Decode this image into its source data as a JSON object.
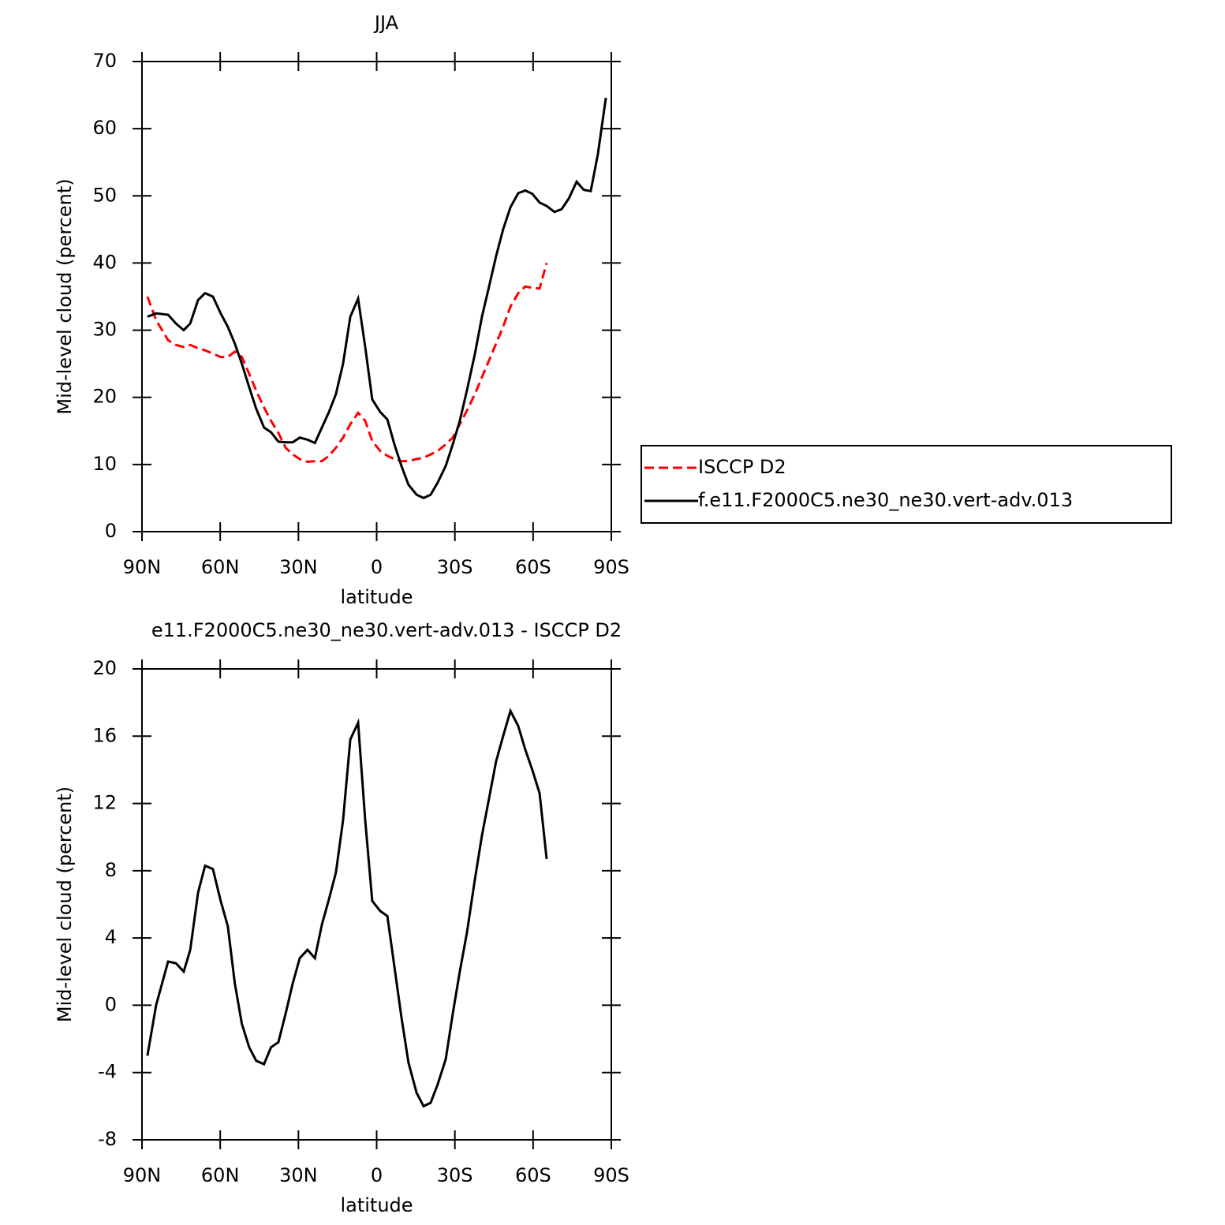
{
  "chart_data": [
    {
      "type": "line",
      "title": "JJA",
      "x_label": "latitude",
      "y_label": "Mid-level cloud (percent)",
      "x": [
        87.9,
        84.6,
        80.0,
        77.0,
        74.0,
        71.5,
        68.5,
        65.8,
        62.8,
        59.8,
        57.1,
        54.4,
        51.7,
        48.9,
        46.2,
        43.2,
        40.5,
        37.7,
        34.9,
        32.2,
        29.5,
        26.5,
        23.7,
        21.0,
        18.3,
        15.6,
        12.9,
        10.1,
        7.1,
        4.4,
        1.7,
        -1.4,
        -4.1,
        -6.8,
        -9.5,
        -12.2,
        -15.3,
        -18.0,
        -20.7,
        -23.4,
        -26.5,
        -29.2,
        -31.9,
        -34.6,
        -37.7,
        -40.4,
        -43.1,
        -45.8,
        -48.5,
        -51.3,
        -54.3,
        -57.0,
        -59.7,
        -62.5,
        -65.2,
        -68.2,
        -70.9,
        -73.7,
        -76.7,
        -79.4,
        -82.1,
        -84.9,
        -87.9
      ],
      "series": [
        {
          "name": "ISCCP D2",
          "color": "#ff0000",
          "style": "dashed",
          "values": [
            35,
            31.5,
            28.5,
            27.8,
            27.5,
            27.8,
            27.3,
            27,
            26.5,
            26,
            26,
            26.8,
            26,
            23.5,
            21,
            18.5,
            16.5,
            14.7,
            12.5,
            11.5,
            10.8,
            10.4,
            10.5,
            10.5,
            11.3,
            12.5,
            14,
            16,
            17.7,
            16.5,
            13.5,
            12,
            11.3,
            10.8,
            10.5,
            10.5,
            10.8,
            11,
            11.5,
            12,
            13,
            14,
            16,
            18,
            20.5,
            23,
            25.5,
            28,
            30.5,
            33.5,
            35.5,
            36.5,
            36.3,
            36.2,
            40,
            null,
            null,
            null,
            null,
            null,
            null,
            null,
            null
          ]
        },
        {
          "name": "f.e11.F2000C5.ne30_ne30.vert-adv.013",
          "color": "#000000",
          "style": "solid",
          "values": [
            32,
            32.5,
            32.3,
            31,
            30,
            31,
            34.5,
            35.5,
            35,
            32.5,
            30.5,
            28,
            25,
            21.5,
            18.3,
            15.5,
            14.8,
            13.4,
            13.3,
            13.3,
            14,
            13.7,
            13.2,
            15.5,
            17.8,
            20.5,
            25,
            32,
            34.7,
            27.5,
            19.7,
            17.8,
            16.7,
            13,
            9.8,
            7,
            5.5,
            5,
            5.5,
            7.3,
            9.8,
            13,
            16.5,
            21,
            26.5,
            32,
            36.5,
            41,
            45,
            48.3,
            50.4,
            50.8,
            50.3,
            49,
            48.5,
            47.6,
            48,
            49.6,
            52.1,
            50.9,
            50.7,
            56.3,
            64.6
          ]
        }
      ],
      "xlim": [
        90,
        -90
      ],
      "xticks": [
        {
          "value": 90,
          "label": "90N"
        },
        {
          "value": 60,
          "label": "60N"
        },
        {
          "value": 30,
          "label": "30N"
        },
        0,
        {
          "value": -30,
          "label": "30S"
        },
        {
          "value": -60,
          "label": "60S"
        },
        {
          "value": -90,
          "label": "90S"
        }
      ],
      "ylim": [
        0,
        70
      ],
      "yticks": [
        0,
        10,
        20,
        30,
        40,
        50,
        60,
        70
      ],
      "legend": "right"
    },
    {
      "type": "line",
      "title": "e11.F2000C5.ne30_ne30.vert-adv.013 - ISCCP D2",
      "x_label": "latitude",
      "y_label": "Mid-level cloud (percent)",
      "x": [
        87.9,
        84.6,
        80.0,
        77.0,
        74.0,
        71.5,
        68.5,
        65.8,
        62.8,
        59.8,
        57.1,
        54.4,
        51.7,
        48.9,
        46.2,
        43.2,
        40.5,
        37.7,
        34.9,
        32.2,
        29.5,
        26.5,
        23.7,
        21.0,
        18.3,
        15.6,
        12.9,
        10.1,
        7.1,
        4.4,
        1.7,
        -1.4,
        -4.1,
        -6.8,
        -9.5,
        -12.2,
        -15.3,
        -18.0,
        -20.7,
        -23.4,
        -26.5,
        -29.2,
        -31.9,
        -34.6,
        -37.7,
        -40.4,
        -43.1,
        -45.8,
        -48.5,
        -51.3,
        -54.3,
        -57.0,
        -59.7,
        -62.5,
        -65.2
      ],
      "series": [
        {
          "color": "#000000",
          "style": "solid",
          "values": [
            -3,
            0,
            2.6,
            2.5,
            2,
            3.3,
            6.7,
            8.3,
            8.1,
            6.2,
            4.7,
            1.3,
            -1.1,
            -2.5,
            -3.3,
            -3.5,
            -2.5,
            -2.2,
            -0.5,
            1.3,
            2.8,
            3.3,
            2.8,
            4.8,
            6.3,
            7.9,
            11,
            15.8,
            16.8,
            11,
            6.2,
            5.6,
            5.3,
            2.3,
            -0.7,
            -3.4,
            -5.2,
            -6,
            -5.8,
            -4.7,
            -3.2,
            -0.5,
            2,
            4.3,
            7.5,
            10.1,
            12.3,
            14.5,
            16,
            17.5,
            16.6,
            15.2,
            14,
            12.6,
            8.7
          ]
        }
      ],
      "xlim": [
        90,
        -90
      ],
      "xticks": [
        {
          "value": 90,
          "label": "90N"
        },
        {
          "value": 60,
          "label": "60N"
        },
        {
          "value": 30,
          "label": "30N"
        },
        0,
        {
          "value": -30,
          "label": "30S"
        },
        {
          "value": -60,
          "label": "60S"
        },
        {
          "value": -90,
          "label": "90S"
        }
      ],
      "ylim": [
        -8,
        20
      ],
      "yticks": [
        -8,
        -4,
        0,
        4,
        8,
        12,
        16,
        20
      ]
    }
  ]
}
